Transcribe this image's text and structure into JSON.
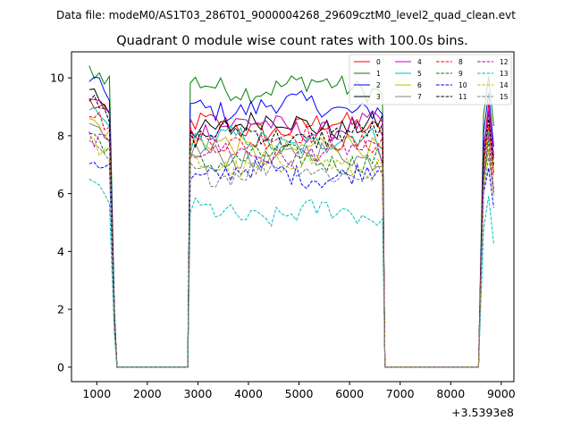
{
  "suptitle": "Data file: modeM0/AS1T03_286T01_9000004268_29609cztM0_level2_quad_clean.evt",
  "chart_data": {
    "type": "line",
    "title": "Quadrant 0 module wise count rates with 100.0s bins.",
    "xlabel": "",
    "ylabel": "",
    "x_offset_label": "+3.5393e8",
    "xlim": [
      500,
      9250
    ],
    "ylim": [
      -0.5,
      10.9
    ],
    "xticks": [
      1000,
      2000,
      3000,
      4000,
      5000,
      6000,
      7000,
      8000,
      9000
    ],
    "yticks": [
      0,
      2,
      4,
      6,
      8,
      10
    ],
    "grid": false,
    "legend_position": "top-right",
    "segments": [
      {
        "x_start": 850,
        "x_end": 1250,
        "step": 100
      },
      {
        "x_start": 2850,
        "x_end": 6650,
        "step": 100
      },
      {
        "x_start": 8650,
        "x_end": 8850,
        "step": 100
      }
    ],
    "edge_points": {
      "drop": [
        1350,
        1400
      ],
      "rise_from_zero": [
        2800,
        2850
      ],
      "mid_drop": [
        6700,
        6750
      ],
      "zero_level": 0,
      "second_rise": [
        8550,
        8650
      ]
    },
    "series": [
      {
        "name": "0",
        "color": "#ff0000",
        "style": "solid",
        "level": 8.3,
        "first": 9.2,
        "late_peak": 9.0
      },
      {
        "name": "1",
        "color": "#008000",
        "style": "solid",
        "level": 9.7,
        "first": 10.3,
        "late_peak": 9.8
      },
      {
        "name": "2",
        "color": "#0000ff",
        "style": "solid",
        "level": 9.0,
        "first": 10.0,
        "late_peak": 9.3
      },
      {
        "name": "3",
        "color": "#000000",
        "style": "solid",
        "level": 8.4,
        "first": 9.7,
        "late_peak": 8.8
      },
      {
        "name": "4",
        "color": "#bf00bf",
        "style": "solid",
        "level": 8.3,
        "first": 9.4,
        "late_peak": 8.7
      },
      {
        "name": "5",
        "color": "#00bfbf",
        "style": "solid",
        "level": 7.8,
        "first": 9.0,
        "late_peak": 8.2
      },
      {
        "name": "6",
        "color": "#bfbf00",
        "style": "solid",
        "level": 7.6,
        "first": 8.6,
        "late_peak": 8.0
      },
      {
        "name": "7",
        "color": "#808080",
        "style": "solid",
        "level": 7.3,
        "first": 8.3,
        "late_peak": 7.6
      },
      {
        "name": "8",
        "color": "#ff0000",
        "style": "dashed",
        "level": 7.9,
        "first": 8.9,
        "late_peak": 8.3
      },
      {
        "name": "9",
        "color": "#008000",
        "style": "dashed",
        "level": 7.2,
        "first": 8.1,
        "late_peak": 7.5
      },
      {
        "name": "10",
        "color": "#0000ff",
        "style": "dashed",
        "level": 6.7,
        "first": 7.2,
        "late_peak": 7.0
      },
      {
        "name": "11",
        "color": "#000000",
        "style": "dashed",
        "level": 8.0,
        "first": 9.3,
        "late_peak": 8.4
      },
      {
        "name": "12",
        "color": "#bf00bf",
        "style": "dashed",
        "level": 7.4,
        "first": 8.0,
        "late_peak": 7.7
      },
      {
        "name": "13",
        "color": "#00bfbf",
        "style": "dashed",
        "level": 5.3,
        "first": 6.4,
        "late_peak": 5.6
      },
      {
        "name": "14",
        "color": "#bfbf00",
        "style": "dashed",
        "level": 7.0,
        "first": 7.8,
        "late_peak": 7.3
      },
      {
        "name": "15",
        "color": "#808080",
        "style": "dashed",
        "level": 6.8,
        "first": 7.6,
        "late_peak": 7.1
      }
    ]
  }
}
